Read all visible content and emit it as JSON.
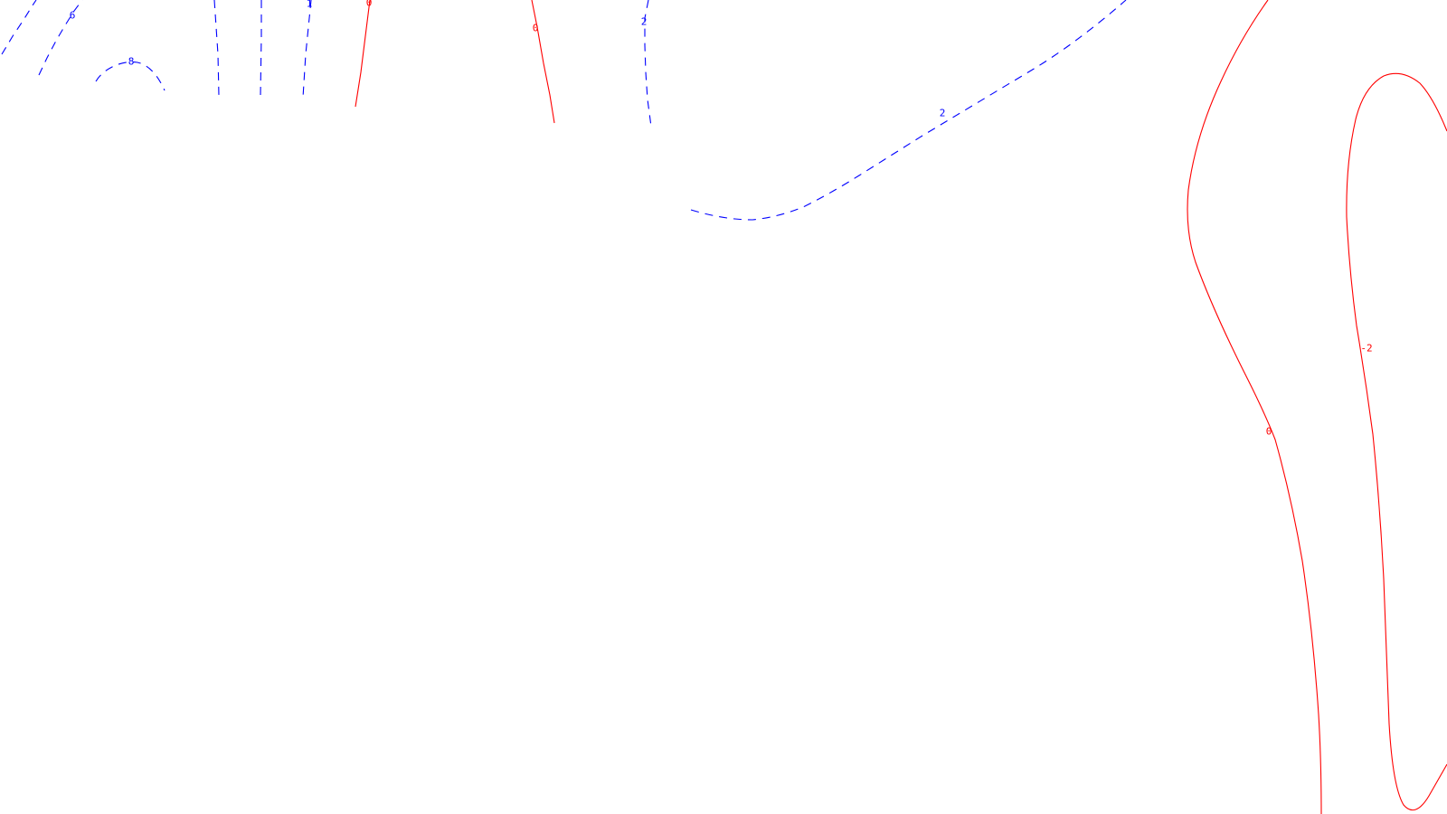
{
  "colors": {
    "positive_contour": "#0000ff",
    "zero_contour": "#ff0000",
    "negative_contour": "#ff0000",
    "background": "#ffffff"
  },
  "contour_labels": [
    "6",
    "8",
    "1",
    "0",
    "0",
    "2",
    "2",
    "0",
    "-2"
  ]
}
